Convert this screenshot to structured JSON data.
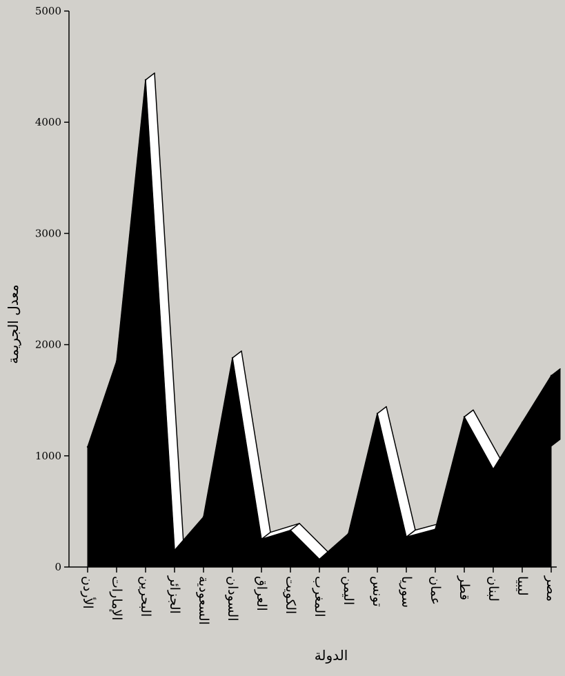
{
  "chart_data": {
    "type": "area",
    "style": "3d-ribbon",
    "xlabel": "الدولة",
    "ylabel": "معدل الجريمة",
    "ylim": [
      0,
      5000
    ],
    "yticks": [
      0,
      1000,
      2000,
      3000,
      4000,
      5000
    ],
    "grid": false,
    "categories": [
      "الأردن",
      "الإمارات",
      "البحرين",
      "الجزائر",
      "السعودية",
      "السودان",
      "العراق",
      "الكويت",
      "المغرب",
      "اليمن",
      "تونس",
      "سوريا",
      "عمان",
      "قطر",
      "لبنان",
      "ليبيا",
      "مصر"
    ],
    "values": [
      1080,
      1850,
      4380,
      150,
      450,
      1880,
      250,
      330,
      70,
      300,
      1380,
      270,
      340,
      1350,
      880,
      1300,
      1720
    ],
    "colors": {
      "fill": "#000000",
      "ribbon": "#ffffff",
      "background": "#d2d0cb"
    }
  }
}
